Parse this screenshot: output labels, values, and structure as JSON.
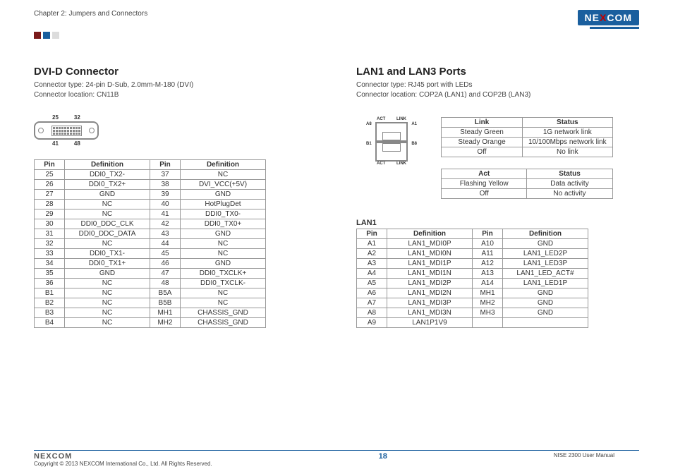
{
  "chapter": "Chapter 2: Jumpers and Connectors",
  "logo_text_left": "NE",
  "logo_text_x": "X",
  "logo_text_right": "COM",
  "dvi": {
    "title": "DVI-D Connector",
    "line1": "Connector type: 24-pin D-Sub, 2.0mm-M-180 (DVI)",
    "line2": "Connector location: CN11B",
    "label_tl": "25",
    "label_tr": "32",
    "label_bl": "41",
    "label_br": "48",
    "headers": {
      "pin": "Pin",
      "def": "Definition"
    },
    "rows": [
      [
        "25",
        "DDI0_TX2-",
        "37",
        "NC"
      ],
      [
        "26",
        "DDI0_TX2+",
        "38",
        "DVI_VCC(+5V)"
      ],
      [
        "27",
        "GND",
        "39",
        "GND"
      ],
      [
        "28",
        "NC",
        "40",
        "HotPlugDet"
      ],
      [
        "29",
        "NC",
        "41",
        "DDI0_TX0-"
      ],
      [
        "30",
        "DDI0_DDC_CLK",
        "42",
        "DDI0_TX0+"
      ],
      [
        "31",
        "DDI0_DDC_DATA",
        "43",
        "GND"
      ],
      [
        "32",
        "NC",
        "44",
        "NC"
      ],
      [
        "33",
        "DDI0_TX1-",
        "45",
        "NC"
      ],
      [
        "34",
        "DDI0_TX1+",
        "46",
        "GND"
      ],
      [
        "35",
        "GND",
        "47",
        "DDI0_TXCLK+"
      ],
      [
        "36",
        "NC",
        "48",
        "DDI0_TXCLK-"
      ],
      [
        "B1",
        "NC",
        "B5A",
        "NC"
      ],
      [
        "B2",
        "NC",
        "B5B",
        "NC"
      ],
      [
        "B3",
        "NC",
        "MH1",
        "CHASSIS_GND"
      ],
      [
        "B4",
        "NC",
        "MH2",
        "CHASSIS_GND"
      ]
    ]
  },
  "lan": {
    "title": "LAN1 and LAN3 Ports",
    "line1": "Connector type: RJ45 port with LEDs",
    "line2": "Connector location: COP2A (LAN1) and COP2B (LAN3)",
    "diag": {
      "act": "ACT",
      "link": "LINK",
      "a8": "A8",
      "a1": "A1",
      "b1": "B1",
      "b8": "B8"
    },
    "link_table": {
      "h1": "Link",
      "h2": "Status",
      "rows": [
        [
          "Steady Green",
          "1G network link"
        ],
        [
          "Steady Orange",
          "10/100Mbps network link"
        ],
        [
          "Off",
          "No link"
        ]
      ]
    },
    "act_table": {
      "h1": "Act",
      "h2": "Status",
      "rows": [
        [
          "Flashing Yellow",
          "Data activity"
        ],
        [
          "Off",
          "No activity"
        ]
      ]
    },
    "lan1": {
      "label": "LAN1",
      "headers": {
        "pin": "Pin",
        "def": "Definition"
      },
      "rows": [
        [
          "A1",
          "LAN1_MDI0P",
          "A10",
          "GND"
        ],
        [
          "A2",
          "LAN1_MDI0N",
          "A11",
          "LAN1_LED2P"
        ],
        [
          "A3",
          "LAN1_MDI1P",
          "A12",
          "LAN1_LED3P"
        ],
        [
          "A4",
          "LAN1_MDI1N",
          "A13",
          "LAN1_LED_ACT#"
        ],
        [
          "A5",
          "LAN1_MDI2P",
          "A14",
          "LAN1_LED1P"
        ],
        [
          "A6",
          "LAN1_MDI2N",
          "MH1",
          "GND"
        ],
        [
          "A7",
          "LAN1_MDI3P",
          "MH2",
          "GND"
        ],
        [
          "A8",
          "LAN1_MDI3N",
          "MH3",
          "GND"
        ],
        [
          "A9",
          "LAN1P1V9",
          "",
          ""
        ]
      ]
    }
  },
  "footer": {
    "copyright": "Copyright © 2013 NEXCOM International Co., Ltd. All Rights Reserved.",
    "page": "18",
    "manual": "NISE 2300 User Manual"
  }
}
